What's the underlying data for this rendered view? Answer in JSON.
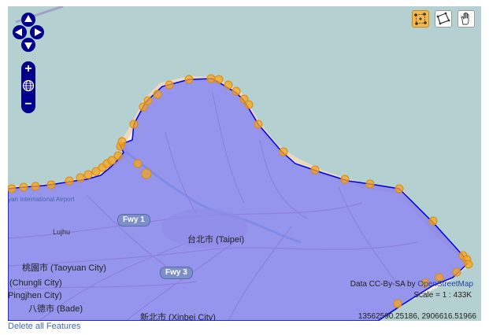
{
  "map": {
    "place_labels": [
      {
        "text": "台北市 (Taipei)",
        "class": "big"
      },
      {
        "text": "桃園市 (Taoyuan City)",
        "class": "city"
      },
      {
        "text": "(Chungli City)",
        "class": "city"
      },
      {
        "text": "Pingjhen City)",
        "class": "city"
      },
      {
        "text": "八德市 (Bade)",
        "class": "city"
      },
      {
        "text": "新北市 (Xinbei City)",
        "class": "city"
      },
      {
        "text": "Lujhu",
        "class": "small"
      },
      {
        "text": "yan International Airport",
        "class": "small"
      }
    ],
    "highways": [
      "Fwy 1",
      "Fwy 3"
    ],
    "colors": {
      "sea": "#b5d0d0",
      "land": "#f2efe9",
      "polygon_fill": "#7b7bf0",
      "polygon_stroke": "#0000dd",
      "vertex": "#f5a623"
    }
  },
  "controls": {
    "pan": [
      "pan-up-icon",
      "pan-left-icon",
      "pan-right-icon",
      "pan-down-icon"
    ],
    "zoom_in": "+",
    "zoom_out": "−",
    "zoom_world_icon": "globe-icon",
    "tools": [
      {
        "name": "draw-point-tool",
        "icon": "vertex-points-icon",
        "active": true
      },
      {
        "name": "draw-polygon-tool",
        "icon": "polygon-icon",
        "active": false
      },
      {
        "name": "navigate-tool",
        "icon": "hand-icon",
        "active": false
      }
    ]
  },
  "attribution": {
    "prefix": "Data CC-By-SA by ",
    "link": "OpenStreetMap"
  },
  "scale": "Scale = 1 : 433K",
  "mouse_position": "13562590.25186, 2906616.51966",
  "delete_link": "Delete all Features"
}
